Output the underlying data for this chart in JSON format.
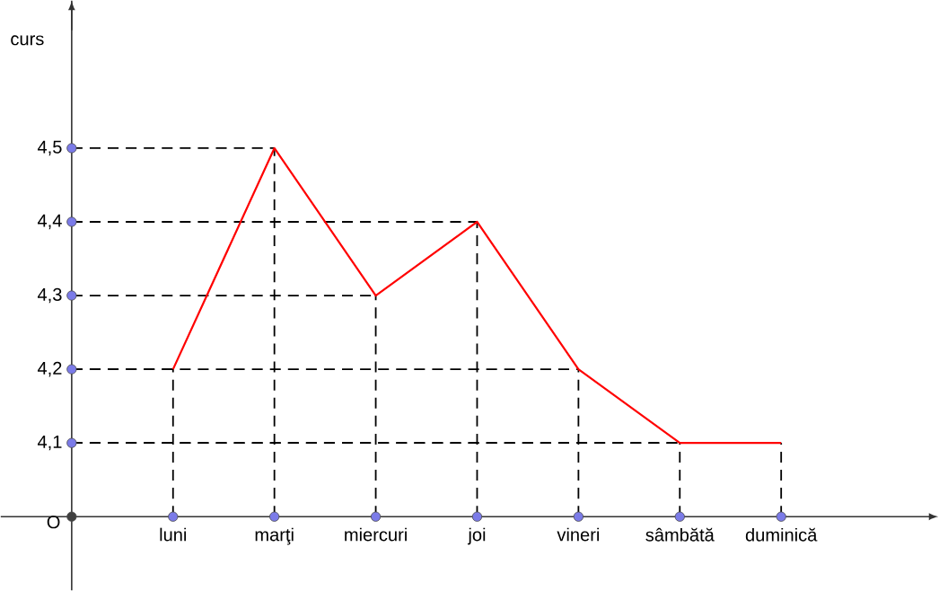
{
  "chart_data": {
    "type": "line",
    "ylabel": "curs",
    "categories": [
      "luni",
      "marţi",
      "miercuri",
      "joi",
      "vineri",
      "sâmbătă",
      "duminică"
    ],
    "series": [
      {
        "color": "#ff0000",
        "values": [
          4.2,
          4.5,
          4.3,
          4.4,
          4.2,
          4.1,
          4.1
        ]
      }
    ],
    "ylim": [
      3.9,
      4.7
    ],
    "yticks": [
      {
        "value": 4.0,
        "label": "O"
      },
      {
        "value": 4.1,
        "label": "4,1"
      },
      {
        "value": 4.2,
        "label": "4,2"
      },
      {
        "value": 4.3,
        "label": "4,3"
      },
      {
        "value": 4.4,
        "label": "4,4"
      },
      {
        "value": 4.5,
        "label": "4,5"
      }
    ],
    "line_style": "solid",
    "marker": "none",
    "grid": true
  }
}
